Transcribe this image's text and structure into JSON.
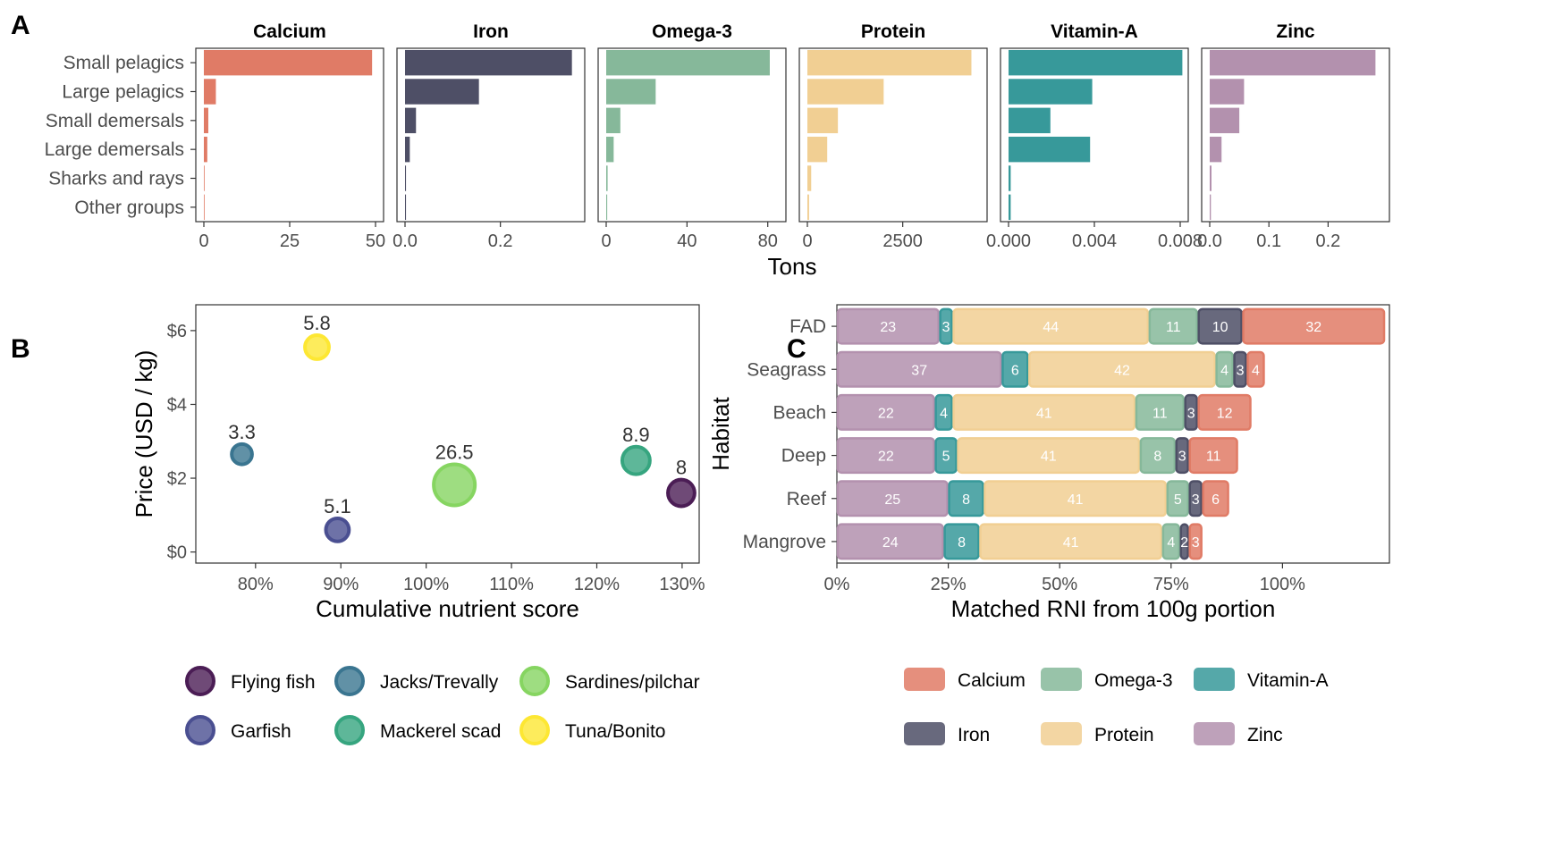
{
  "colors": {
    "Calcium": "#e07b66",
    "Iron": "#4e4f66",
    "Omega-3": "#86b89a",
    "Protein": "#f1cf93",
    "Vitamin-A": "#37999a",
    "Zinc": "#b391ae",
    "Flying fish": "#4b1d55",
    "Garfish": "#4a4f91",
    "Jacks/Trevally": "#3a7590",
    "Mackerel scad": "#36a57f",
    "Sardines/pilchar": "#86d561",
    "Tuna/Bonito": "#fde733"
  },
  "panels": {
    "a": "A",
    "b": "B",
    "c": "C"
  },
  "chart_data": [
    {
      "panel": "A",
      "type": "bar",
      "orientation": "horizontal",
      "categories": [
        "Small pelagics",
        "Large pelagics",
        "Small demersals",
        "Large demersals",
        "Sharks and rays",
        "Other groups"
      ],
      "xlabel": "Tons",
      "facets": [
        {
          "name": "Calcium",
          "max": 50,
          "ticks": [
            0,
            25,
            50
          ],
          "tick_labels": [
            "0",
            "25",
            "50"
          ],
          "values": [
            49,
            3.5,
            1.3,
            1.0,
            0.15,
            0.1
          ]
        },
        {
          "name": "Iron",
          "max": 0.36,
          "ticks": [
            0,
            0.2
          ],
          "tick_labels": [
            "0.0",
            "0.2"
          ],
          "values": [
            0.35,
            0.155,
            0.023,
            0.01,
            0.002,
            0.002
          ]
        },
        {
          "name": "Omega-3",
          "max": 85,
          "ticks": [
            0,
            40,
            80
          ],
          "tick_labels": [
            "0",
            "40",
            "80"
          ],
          "values": [
            81,
            24.5,
            7,
            3.7,
            0.7,
            0.5
          ]
        },
        {
          "name": "Protein",
          "max": 4500,
          "ticks": [
            0,
            2500
          ],
          "tick_labels": [
            "0",
            "2500"
          ],
          "values": [
            4300,
            2000,
            800,
            520,
            100,
            45
          ]
        },
        {
          "name": "Vitamin-A",
          "max": 0.008,
          "ticks": [
            0,
            0.004,
            0.008
          ],
          "tick_labels": [
            "0.000",
            "0.004",
            "0.008"
          ],
          "values": [
            0.0081,
            0.0039,
            0.00195,
            0.0038,
            0.0001,
            0.0001
          ]
        },
        {
          "name": "Zinc",
          "max": 0.29,
          "ticks": [
            0,
            0.1,
            0.2
          ],
          "tick_labels": [
            "0.0",
            "0.1",
            "0.2"
          ],
          "values": [
            0.28,
            0.058,
            0.05,
            0.02,
            0.003,
            0.002
          ]
        }
      ]
    },
    {
      "panel": "B",
      "type": "scatter",
      "xlabel": "Cumulative nutrient score",
      "ylabel": "Price (USD / kg)",
      "xlim": [
        73,
        132
      ],
      "ylim": [
        -0.3,
        6.7
      ],
      "xticks": [
        80,
        90,
        100,
        110,
        120,
        130
      ],
      "xtick_labels": [
        "80%",
        "90%",
        "100%",
        "110%",
        "120%",
        "130%"
      ],
      "yticks": [
        0,
        2,
        4,
        6
      ],
      "ytick_labels": [
        "$0",
        "$2",
        "$4",
        "$6"
      ],
      "points": [
        {
          "name": "Tuna/Bonito",
          "x": 87.2,
          "y": 5.55,
          "size": 5.8,
          "label": "5.8"
        },
        {
          "name": "Jacks/Trevally",
          "x": 78.4,
          "y": 2.65,
          "size": 3.3,
          "label": "3.3"
        },
        {
          "name": "Garfish",
          "x": 89.6,
          "y": 0.6,
          "size": 5.1,
          "label": "5.1"
        },
        {
          "name": "Sardines/pilchar",
          "x": 103.3,
          "y": 1.82,
          "size": 26.5,
          "label": "26.5"
        },
        {
          "name": "Mackerel scad",
          "x": 124.6,
          "y": 2.48,
          "size": 8.9,
          "label": "8.9"
        },
        {
          "name": "Flying fish",
          "x": 129.9,
          "y": 1.6,
          "size": 8,
          "label": "8"
        }
      ]
    },
    {
      "panel": "C",
      "type": "bar",
      "orientation": "horizontal",
      "stacked": true,
      "xlabel": "Matched RNI from 100g portion",
      "ylabel": "Habitat",
      "xlim": [
        0,
        124
      ],
      "xticks": [
        0,
        25,
        50,
        75,
        100
      ],
      "xtick_labels": [
        "0%",
        "25%",
        "50%",
        "75%",
        "100%"
      ],
      "stack_order": [
        "Zinc",
        "Vitamin-A",
        "Protein",
        "Omega-3",
        "Iron",
        "Calcium"
      ],
      "categories": [
        "FAD",
        "Seagrass",
        "Beach",
        "Deep",
        "Reef",
        "Mangrove"
      ],
      "rows": [
        {
          "habitat": "FAD",
          "Zinc": 23,
          "Vitamin-A": 3,
          "Protein": 44,
          "Omega-3": 11,
          "Iron": 10,
          "Calcium": 32
        },
        {
          "habitat": "Seagrass",
          "Zinc": 37,
          "Vitamin-A": 6,
          "Protein": 42,
          "Omega-3": 4,
          "Iron": 3,
          "Calcium": 4
        },
        {
          "habitat": "Beach",
          "Zinc": 22,
          "Vitamin-A": 4,
          "Protein": 41,
          "Omega-3": 11,
          "Iron": 3,
          "Calcium": 12
        },
        {
          "habitat": "Deep",
          "Zinc": 22,
          "Vitamin-A": 5,
          "Protein": 41,
          "Omega-3": 8,
          "Iron": 3,
          "Calcium": 11
        },
        {
          "habitat": "Reef",
          "Zinc": 25,
          "Vitamin-A": 8,
          "Protein": 41,
          "Omega-3": 5,
          "Iron": 3,
          "Calcium": 6
        },
        {
          "habitat": "Mangrove",
          "Zinc": 24,
          "Vitamin-A": 8,
          "Protein": 41,
          "Omega-3": 4,
          "Iron": 2,
          "Calcium": 3
        }
      ]
    }
  ],
  "legend_b": {
    "items": [
      "Flying fish",
      "Jacks/Trevally",
      "Sardines/pilchar",
      "Garfish",
      "Mackerel scad",
      "Tuna/Bonito"
    ]
  },
  "legend_c": {
    "items": [
      "Calcium",
      "Omega-3",
      "Vitamin-A",
      "Iron",
      "Protein",
      "Zinc"
    ]
  }
}
